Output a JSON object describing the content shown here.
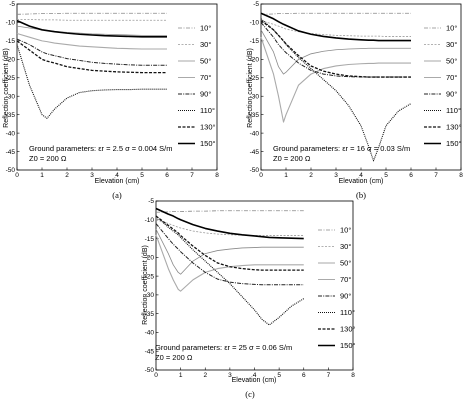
{
  "legend_styles": [
    {
      "label": "10°",
      "color": "#888888",
      "width": 0.8,
      "dash": "4,1.5,1,1.5"
    },
    {
      "label": "30°",
      "color": "#999999",
      "width": 0.8,
      "dash": "2,1.5"
    },
    {
      "label": "50°",
      "color": "#8a8a8a",
      "width": 0.8,
      "dash": ""
    },
    {
      "label": "70°",
      "color": "#aaaaaa",
      "width": 1.1,
      "dash": ""
    },
    {
      "label": "90°",
      "color": "#222222",
      "width": 1.0,
      "dash": "4,1.2,1,1.2"
    },
    {
      "label": "110°",
      "color": "#111111",
      "width": 1.1,
      "dash": "1,1"
    },
    {
      "label": "130°",
      "color": "#111111",
      "width": 1.3,
      "dash": "3,1.5"
    },
    {
      "label": "150°",
      "color": "#000000",
      "width": 1.6,
      "dash": ""
    }
  ],
  "chart_data": [
    {
      "type": "line",
      "panel": "(a)",
      "xlabel": "Elevation (cm)",
      "ylabel": "Reflection coefficient (dB)",
      "xlim": [
        0,
        8
      ],
      "ylim": [
        -50,
        -5
      ],
      "xticks": [
        "0",
        "1",
        "2",
        "3",
        "4",
        "5",
        "6",
        "7",
        "8"
      ],
      "yticks": [
        "-5",
        "-10",
        "-15",
        "-20",
        "-25",
        "-30",
        "-35",
        "-40",
        "-45",
        "-50"
      ],
      "annotation_line1": "Ground parameters: εr = 2.5  σ = 0.004 S/m",
      "annotation_line2": "Z0 = 200 Ω",
      "x": [
        0,
        0.5,
        1,
        1.2,
        1.5,
        2,
        2.5,
        3,
        3.5,
        4,
        4.5,
        5,
        5.5,
        6
      ],
      "series": [
        {
          "name": "10°",
          "values": [
            -7.8,
            -7.7,
            -7.6,
            -7.6,
            -7.6,
            -7.5,
            -7.5,
            -7.5,
            -7.5,
            -7.5,
            -7.5,
            -7.5,
            -7.5,
            -7.5
          ]
        },
        {
          "name": "30°",
          "values": [
            -9.2,
            -9.2,
            -9.3,
            -9.3,
            -9.3,
            -9.4,
            -9.4,
            -9.4,
            -9.4,
            -9.4,
            -9.4,
            -9.4,
            -9.4,
            -9.4
          ]
        },
        {
          "name": "50°",
          "values": [
            -11,
            -11.5,
            -12,
            -12.2,
            -12.4,
            -12.7,
            -12.9,
            -13.1,
            -13.2,
            -13.3,
            -13.4,
            -13.5,
            -13.5,
            -13.5
          ]
        },
        {
          "name": "70°",
          "values": [
            -13,
            -14,
            -15,
            -15.2,
            -15.6,
            -16,
            -16.4,
            -16.6,
            -16.8,
            -17,
            -17.1,
            -17.2,
            -17.2,
            -17.2
          ]
        },
        {
          "name": "90°",
          "values": [
            -14.5,
            -16,
            -18,
            -18.5,
            -19,
            -19.8,
            -20.3,
            -20.8,
            -21.1,
            -21.3,
            -21.5,
            -21.6,
            -21.6,
            -21.6
          ]
        },
        {
          "name": "110°",
          "values": [
            -16,
            -27,
            -35,
            -36,
            -33.5,
            -30.5,
            -29,
            -28.5,
            -28.3,
            -28.2,
            -28.2,
            -28.1,
            -28.1,
            -28.1
          ]
        },
        {
          "name": "130°",
          "values": [
            -15,
            -17.5,
            -20,
            -20.5,
            -21,
            -22,
            -22.5,
            -23,
            -23.2,
            -23.4,
            -23.5,
            -23.6,
            -23.6,
            -23.6
          ]
        },
        {
          "name": "150°",
          "values": [
            -9.5,
            -11,
            -12,
            -12.2,
            -12.5,
            -12.9,
            -13.2,
            -13.4,
            -13.6,
            -13.7,
            -13.8,
            -13.9,
            -13.9,
            -13.9
          ]
        }
      ]
    },
    {
      "type": "line",
      "panel": "(b)",
      "xlabel": "Elevation (cm)",
      "ylabel": "Reflection coefficient (dB)",
      "xlim": [
        0,
        8
      ],
      "ylim": [
        -50,
        -5
      ],
      "xticks": [
        "0",
        "1",
        "2",
        "3",
        "4",
        "5",
        "6",
        "7",
        "8"
      ],
      "yticks": [
        "-5",
        "-10",
        "-15",
        "-20",
        "-25",
        "-30",
        "-35",
        "-40",
        "-45",
        "-50"
      ],
      "annotation_line1": "Ground parameters: εr = 16  σ = 0.03 S/m",
      "annotation_line2": "Z0 = 200 Ω",
      "x": [
        0,
        0.5,
        0.7,
        0.9,
        1,
        1.5,
        2,
        2.5,
        3,
        3.5,
        4,
        4.3,
        4.5,
        4.7,
        5,
        5.5,
        6
      ],
      "series": [
        {
          "name": "10°",
          "values": [
            -7.8,
            -7.7,
            -7.6,
            -7.6,
            -7.6,
            -7.5,
            -7.5,
            -7.5,
            -7.5,
            -7.5,
            -7.5,
            -7.5,
            -7.5,
            -7.5,
            -7.5,
            -7.5,
            -7.5
          ]
        },
        {
          "name": "30°",
          "values": [
            -9.5,
            -10.5,
            -11,
            -11.5,
            -11.8,
            -12.5,
            -13,
            -13.3,
            -13.5,
            -13.6,
            -13.7,
            -13.7,
            -13.7,
            -13.7,
            -13.8,
            -13.8,
            -13.8
          ]
        },
        {
          "name": "50°",
          "values": [
            -12,
            -18,
            -22,
            -24,
            -23.5,
            -20,
            -18.5,
            -17.8,
            -17.4,
            -17.2,
            -17.1,
            -17,
            -17,
            -17,
            -17,
            -17,
            -17
          ]
        },
        {
          "name": "70°",
          "values": [
            -14,
            -24,
            -30,
            -37,
            -35,
            -27,
            -24,
            -22.5,
            -21.8,
            -21.4,
            -21.2,
            -21.1,
            -21.1,
            -21,
            -21,
            -21,
            -21
          ]
        },
        {
          "name": "90°",
          "values": [
            -10,
            -14,
            -16,
            -17.5,
            -18.2,
            -21,
            -23,
            -24,
            -24.5,
            -24.7,
            -24.8,
            -24.8,
            -24.8,
            -24.8,
            -24.8,
            -24.8,
            -24.8
          ]
        },
        {
          "name": "110°",
          "values": [
            -9,
            -12,
            -13.5,
            -15,
            -16,
            -19.5,
            -22.5,
            -25.5,
            -28.5,
            -32.5,
            -38,
            -43.5,
            -47.5,
            -44,
            -38,
            -34,
            -32
          ]
        },
        {
          "name": "130°",
          "values": [
            -9.5,
            -12,
            -13.5,
            -15,
            -15.8,
            -19,
            -21.8,
            -23.2,
            -24,
            -24.5,
            -24.7,
            -24.8,
            -24.8,
            -24.8,
            -24.8,
            -24.8,
            -24.8
          ]
        },
        {
          "name": "150°",
          "values": [
            -7.5,
            -9,
            -9.8,
            -10.5,
            -10.8,
            -12.3,
            -13.2,
            -13.8,
            -14.2,
            -14.5,
            -14.7,
            -14.8,
            -14.8,
            -14.9,
            -14.9,
            -14.9,
            -14.9
          ]
        }
      ]
    },
    {
      "type": "line",
      "panel": "(c)",
      "xlabel": "Elevation (cm)",
      "ylabel": "Reflection coefficient (dB)",
      "xlim": [
        0,
        8
      ],
      "ylim": [
        -50,
        -5
      ],
      "xticks": [
        "0",
        "1",
        "2",
        "3",
        "4",
        "5",
        "6",
        "7",
        "8"
      ],
      "yticks": [
        "-5",
        "-10",
        "-15",
        "-20",
        "-25",
        "-30",
        "-35",
        "-40",
        "-45",
        "-50"
      ],
      "annotation_line1": "Ground parameters: εr = 25  σ = 0.06 S/m",
      "annotation_line2": "Z0 = 200 Ω",
      "x": [
        0,
        0.5,
        0.7,
        0.9,
        1,
        1.5,
        2,
        2.5,
        3,
        3.5,
        4,
        4.3,
        4.6,
        5,
        5.5,
        6
      ],
      "series": [
        {
          "name": "10°",
          "values": [
            -8,
            -7.9,
            -7.8,
            -7.8,
            -7.8,
            -7.7,
            -7.7,
            -7.6,
            -7.6,
            -7.6,
            -7.6,
            -7.6,
            -7.6,
            -7.6,
            -7.6,
            -7.6
          ]
        },
        {
          "name": "30°",
          "values": [
            -10,
            -11,
            -11.5,
            -12,
            -12.2,
            -13,
            -13.5,
            -13.8,
            -14,
            -14.1,
            -14.2,
            -14.2,
            -14.2,
            -14.2,
            -14.2,
            -14.2
          ]
        },
        {
          "name": "50°",
          "values": [
            -12.5,
            -19,
            -22,
            -24,
            -24.5,
            -21,
            -19,
            -18.2,
            -17.8,
            -17.5,
            -17.4,
            -17.3,
            -17.3,
            -17.3,
            -17.3,
            -17.3
          ]
        },
        {
          "name": "70°",
          "values": [
            -14,
            -23,
            -26,
            -28.5,
            -29,
            -26,
            -24,
            -23,
            -22.5,
            -22.2,
            -22,
            -22,
            -22,
            -22,
            -22,
            -22
          ]
        },
        {
          "name": "90°",
          "values": [
            -11,
            -15,
            -16.5,
            -17.8,
            -18.5,
            -21.5,
            -24,
            -25.8,
            -26.6,
            -27,
            -27.2,
            -27.3,
            -27.3,
            -27.3,
            -27.3,
            -27.3
          ]
        },
        {
          "name": "110°",
          "values": [
            -9,
            -12,
            -13,
            -14,
            -14.7,
            -18,
            -21,
            -24,
            -27,
            -30.5,
            -34,
            -36.5,
            -38,
            -36,
            -33,
            -31
          ]
        },
        {
          "name": "130°",
          "values": [
            -9,
            -11.5,
            -12.5,
            -13.5,
            -14.2,
            -17,
            -19.5,
            -21.5,
            -22.5,
            -23,
            -23.3,
            -23.4,
            -23.4,
            -23.4,
            -23.4,
            -23.4
          ]
        },
        {
          "name": "150°",
          "values": [
            -7,
            -8.5,
            -9,
            -9.7,
            -10,
            -11.3,
            -12.3,
            -13,
            -13.6,
            -14,
            -14.3,
            -14.5,
            -14.7,
            -14.8,
            -14.9,
            -15
          ]
        }
      ]
    }
  ]
}
